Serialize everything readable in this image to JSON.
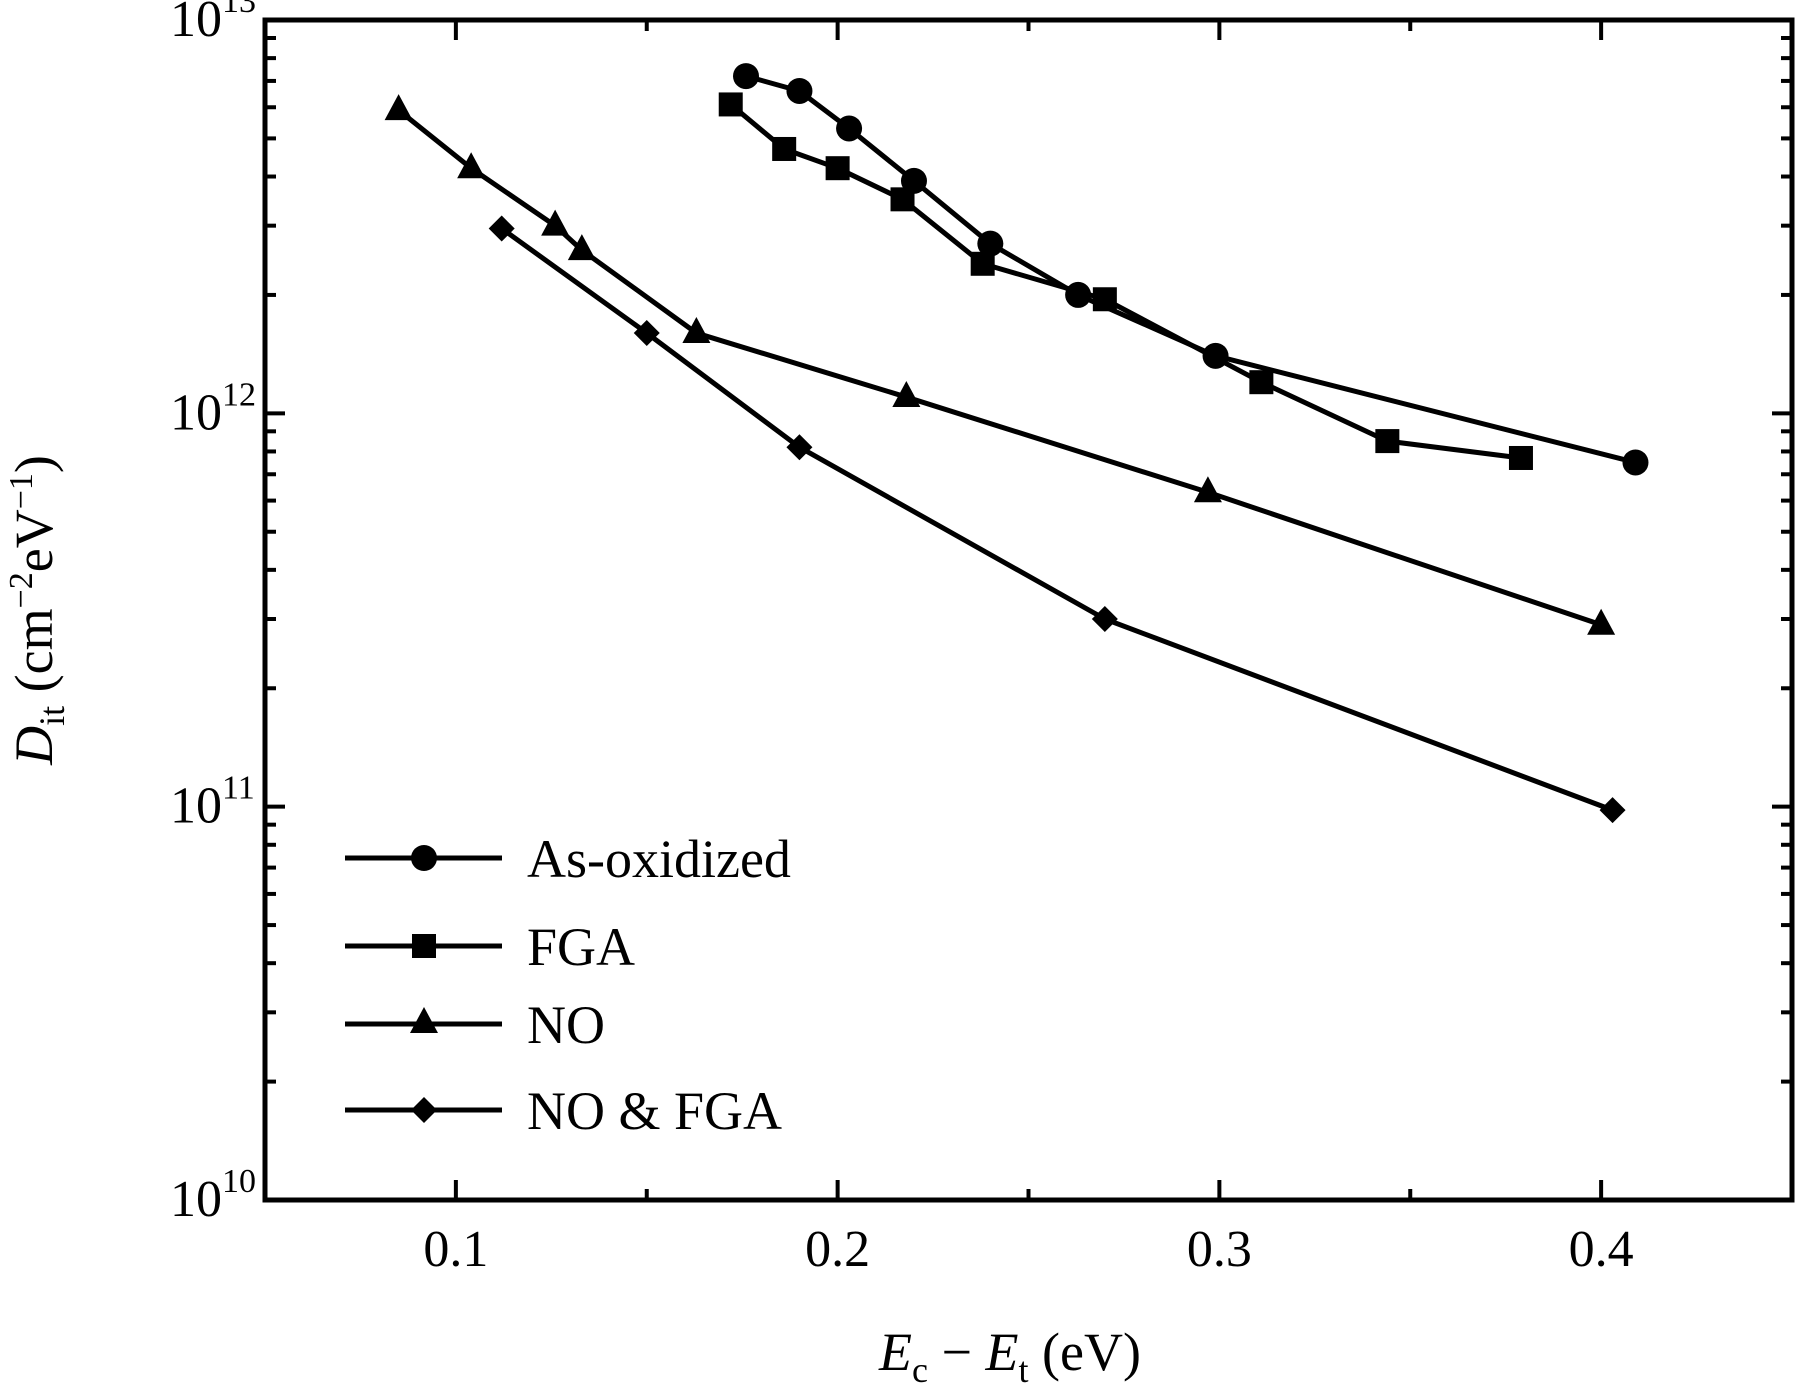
{
  "chart_data": {
    "type": "line",
    "xscale": "linear",
    "yscale": "log",
    "xlim": [
      0.05,
      0.45
    ],
    "ylim": [
      10000000000.0,
      10000000000000.0
    ],
    "x_ticks": [
      {
        "value": 0.1,
        "label": "0.1"
      },
      {
        "value": 0.2,
        "label": "0.2"
      },
      {
        "value": 0.3,
        "label": "0.3"
      },
      {
        "value": 0.4,
        "label": "0.4"
      }
    ],
    "y_ticks": [
      {
        "value": 10000000000.0,
        "base": "10",
        "exp": "10"
      },
      {
        "value": 100000000000.0,
        "base": "10",
        "exp": "11"
      },
      {
        "value": 1000000000000.0,
        "base": "10",
        "exp": "12"
      },
      {
        "value": 10000000000000.0,
        "base": "10",
        "exp": "13"
      }
    ],
    "xlabel": {
      "e1": "E",
      "s1": "c",
      "mid": " − ",
      "e2": "E",
      "s2": "t",
      "unit": " (eV)"
    },
    "ylabel": {
      "sym": "D",
      "sub": "it",
      "unit_a": " (cm",
      "exp_a": "−2",
      "unit_b": "eV",
      "exp_b": "−1",
      "unit_c": ")"
    },
    "legend_position": "bottom-left",
    "grid": false,
    "series": [
      {
        "name": "As-oxidized",
        "marker": "circle",
        "x": [
          0.176,
          0.19,
          0.203,
          0.22,
          0.24,
          0.263,
          0.299,
          0.409
        ],
        "y": [
          7200000000000.0,
          6600000000000.0,
          5300000000000.0,
          3900000000000.0,
          2700000000000.0,
          2000000000000.0,
          1400000000000.0,
          750000000000.0
        ]
      },
      {
        "name": "FGA",
        "marker": "square",
        "x": [
          0.172,
          0.186,
          0.2,
          0.217,
          0.238,
          0.27,
          0.311,
          0.344,
          0.379
        ],
        "y": [
          6100000000000.0,
          4700000000000.0,
          4200000000000.0,
          3500000000000.0,
          2400000000000.0,
          1950000000000.0,
          1200000000000.0,
          850000000000.0,
          770000000000.0
        ]
      },
      {
        "name": "NO",
        "marker": "triangle",
        "x": [
          0.085,
          0.104,
          0.126,
          0.133,
          0.163,
          0.218,
          0.297,
          0.4
        ],
        "y": [
          5900000000000.0,
          4200000000000.0,
          3000000000000.0,
          2600000000000.0,
          1600000000000.0,
          1100000000000.0,
          630000000000.0,
          290000000000.0
        ]
      },
      {
        "name": "NO & FGA",
        "marker": "diamond",
        "x": [
          0.112,
          0.15,
          0.19,
          0.27,
          0.403
        ],
        "y": [
          2950000000000.0,
          1600000000000.0,
          820000000000.0,
          300000000000.0,
          98000000000.0
        ]
      }
    ]
  }
}
